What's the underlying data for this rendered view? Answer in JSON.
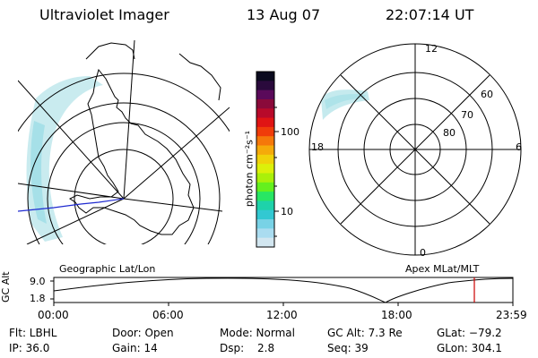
{
  "header": {
    "instrument": "Ultraviolet Imager",
    "date": "13 Aug 07",
    "time": "22:07:14 UT"
  },
  "colorbar": {
    "unit_label": "photon cm⁻²s⁻¹",
    "ticks": [
      "100",
      "10"
    ],
    "colors": [
      "#0a0a1e",
      "#2a0a3c",
      "#5a0a5a",
      "#8a0a3a",
      "#b80a2a",
      "#e01414",
      "#f03c0a",
      "#f5780a",
      "#f5aa0a",
      "#f0d20a",
      "#dcf00a",
      "#aaf00a",
      "#64f01e",
      "#28e664",
      "#1ed2aa",
      "#32c8d2",
      "#78d2e6",
      "#aadcf0",
      "#d2e6f0"
    ]
  },
  "left_panel": {
    "label": "Geographic Lat/Lon"
  },
  "right_panel": {
    "label": "Apex MLat/MLT",
    "mlt_labels": [
      "12",
      "18",
      "6",
      "0"
    ],
    "mlat_labels": [
      "60",
      "70",
      "80"
    ]
  },
  "timeline": {
    "axis_label": "GC Alt",
    "y_ticks": [
      "9.0",
      "1.8"
    ],
    "x_ticks": [
      "00:00",
      "06:00",
      "12:00",
      "18:00",
      "23:59"
    ],
    "current_marker_color": "#cc0000"
  },
  "footer": {
    "flt": "Flt: LBHL",
    "ip": "IP: 36.0",
    "door": "Door: Open",
    "gain": "Gain: 14",
    "mode": "Mode: Normal",
    "dsp_label": "Dsp:",
    "dsp_value": "2.8",
    "gc_alt": "GC Alt: 7.3 Re",
    "seq": "Seq: 39",
    "glat": "GLat: −79.2",
    "glon": "GLon: 304.1"
  }
}
